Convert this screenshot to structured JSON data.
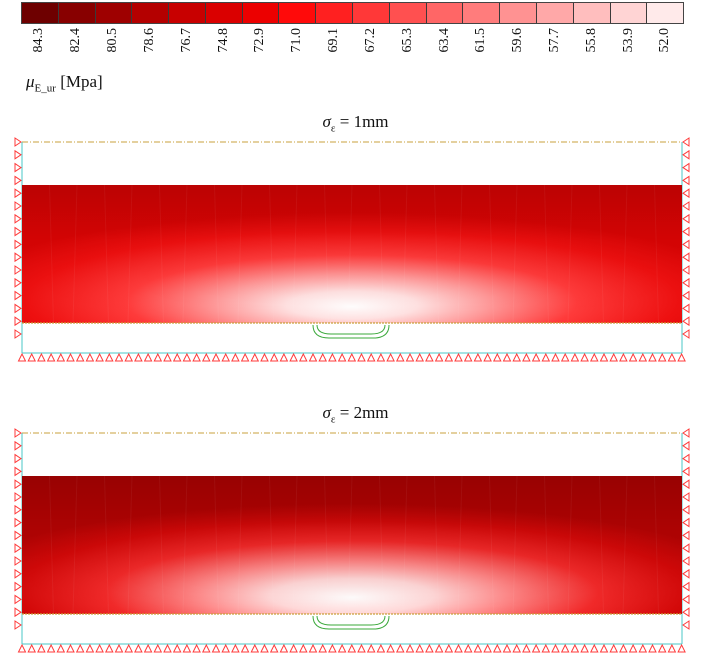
{
  "legend": {
    "ticks": [
      "84.3",
      "82.4",
      "80.5",
      "78.6",
      "76.7",
      "74.8",
      "72.9",
      "71.0",
      "69.1",
      "67.2",
      "65.3",
      "63.4",
      "61.5",
      "59.6",
      "57.7",
      "55.8",
      "53.9",
      "52.0"
    ],
    "colors": [
      "#6e0000",
      "#880000",
      "#9e0000",
      "#b40000",
      "#c80000",
      "#da0000",
      "#ec0000",
      "#ff0a0a",
      "#ff2020",
      "#ff3838",
      "#ff5050",
      "#ff6666",
      "#ff7c7c",
      "#ff9292",
      "#ffa8a8",
      "#ffbebe",
      "#ffd4d4",
      "#ffeaea"
    ],
    "unit_symbol": "μ",
    "unit_sub": "E_ur",
    "unit_text": "[Mpa]"
  },
  "panels": [
    {
      "symbol": "σ",
      "sub": "ε",
      "text": "= 1mm"
    },
    {
      "symbol": "σ",
      "sub": "ε",
      "text": "= 2mm"
    }
  ],
  "colors": {
    "boundary_support": "#ff3b3b",
    "domain_edge": "#4ac7c7",
    "surface_line": "#c9a03c",
    "tunnel": "#3aa83a"
  }
}
